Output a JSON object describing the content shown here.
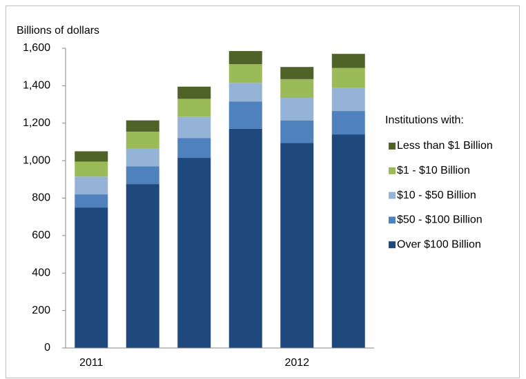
{
  "chart_data": {
    "type": "stacked_bar",
    "y_label": "Billions of dollars",
    "legend_title": "Institutions with:",
    "categories": [
      "2011",
      null,
      null,
      null,
      "2012",
      null
    ],
    "series": [
      {
        "name": "Over $100 Billion",
        "color": "#1f497d",
        "values": [
          750,
          875,
          1015,
          1170,
          1095,
          1140
        ]
      },
      {
        "name": "$50 - $100 Billion",
        "color": "#4f81bd",
        "values": [
          70,
          95,
          105,
          145,
          120,
          125
        ]
      },
      {
        "name": "$10 - $50 Billion",
        "color": "#95b3d7",
        "values": [
          95,
          95,
          115,
          100,
          120,
          125
        ]
      },
      {
        "name": "$1 - $10 Billion",
        "color": "#9bbb59",
        "values": [
          80,
          90,
          95,
          100,
          100,
          105
        ]
      },
      {
        "name": "Less than $1 Billion",
        "color": "#4f6228",
        "values": [
          55,
          60,
          65,
          70,
          65,
          75
        ]
      }
    ],
    "ylim": [
      0,
      1600
    ],
    "yticks": [
      0,
      200,
      400,
      600,
      800,
      {
        "value": 1000,
        "label": "1,000"
      },
      {
        "value": 1200,
        "label": "1,200"
      },
      {
        "value": 1400,
        "label": "1,400"
      },
      {
        "value": 1600,
        "label": "1,600"
      }
    ],
    "legend": "right"
  }
}
